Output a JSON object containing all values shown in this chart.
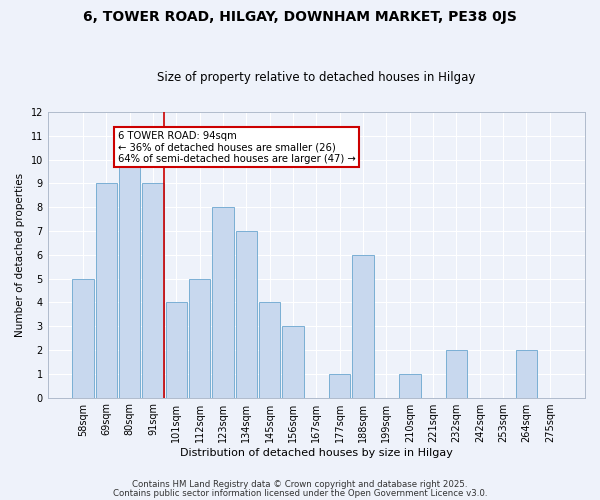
{
  "title": "6, TOWER ROAD, HILGAY, DOWNHAM MARKET, PE38 0JS",
  "subtitle": "Size of property relative to detached houses in Hilgay",
  "xlabel": "Distribution of detached houses by size in Hilgay",
  "ylabel": "Number of detached properties",
  "bar_labels": [
    "58sqm",
    "69sqm",
    "80sqm",
    "91sqm",
    "101sqm",
    "112sqm",
    "123sqm",
    "134sqm",
    "145sqm",
    "156sqm",
    "167sqm",
    "177sqm",
    "188sqm",
    "199sqm",
    "210sqm",
    "221sqm",
    "232sqm",
    "242sqm",
    "253sqm",
    "264sqm",
    "275sqm"
  ],
  "bar_values": [
    5,
    9,
    10,
    9,
    4,
    5,
    8,
    7,
    4,
    3,
    0,
    1,
    6,
    0,
    1,
    0,
    2,
    0,
    0,
    2,
    0
  ],
  "bar_color": "#c8d8ee",
  "bar_edge_color": "#7aafd4",
  "background_color": "#eef2fa",
  "grid_color": "#ffffff",
  "vline_color": "#cc0000",
  "vline_x_index": 3.5,
  "ylim": [
    0,
    12
  ],
  "yticks": [
    0,
    1,
    2,
    3,
    4,
    5,
    6,
    7,
    8,
    9,
    10,
    11,
    12
  ],
  "annotation_text": "6 TOWER ROAD: 94sqm\n← 36% of detached houses are smaller (26)\n64% of semi-detached houses are larger (47) →",
  "annotation_box_color": "white",
  "annotation_box_edge": "#cc0000",
  "footer1": "Contains HM Land Registry data © Crown copyright and database right 2025.",
  "footer2": "Contains public sector information licensed under the Open Government Licence v3.0."
}
